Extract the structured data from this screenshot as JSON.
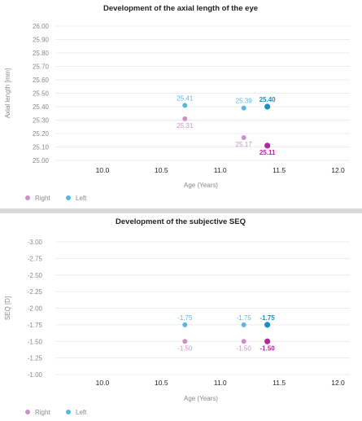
{
  "chart_data": [
    {
      "type": "scatter",
      "title": "Development of the axial length of the eye",
      "xlabel": "Age (Years)",
      "ylabel": "Axial length [mm]",
      "xlim": [
        9.6,
        12.1
      ],
      "ylim": [
        25.0,
        26.0
      ],
      "x_ticks": [
        "10.0",
        "10.5",
        "11.0",
        "11.5",
        "12.0"
      ],
      "y_ticks": [
        "26.00",
        "25.90",
        "25.80",
        "25.70",
        "25.60",
        "25.50",
        "25.40",
        "25.30",
        "25.20",
        "25.10",
        "25.00"
      ],
      "grid": true,
      "legend_position": "bottom-left",
      "series": [
        {
          "name": "Right",
          "color": "#cf8fc8",
          "points": [
            {
              "x": 10.7,
              "y": 25.31,
              "label": "25.31"
            },
            {
              "x": 11.2,
              "y": 25.17,
              "label": "25.17"
            },
            {
              "x": 11.4,
              "y": 25.11,
              "label": "25.11",
              "highlight": true
            }
          ]
        },
        {
          "name": "Left",
          "color": "#56b8df",
          "points": [
            {
              "x": 10.7,
              "y": 25.41,
              "label": "25.41"
            },
            {
              "x": 11.2,
              "y": 25.39,
              "label": "25.39"
            },
            {
              "x": 11.4,
              "y": 25.4,
              "label": "25.40",
              "highlight": true
            }
          ]
        }
      ]
    },
    {
      "type": "scatter",
      "title": "Development of the subjective SEQ",
      "xlabel": "Age (Years)",
      "ylabel": "SEQ [D]",
      "xlim": [
        9.6,
        12.1
      ],
      "ylim": [
        -1.0,
        -3.0
      ],
      "x_ticks": [
        "10.0",
        "10.5",
        "11.0",
        "11.5",
        "12.0"
      ],
      "y_ticks": [
        "-3.00",
        "-2.75",
        "-2.50",
        "-2.25",
        "-2.00",
        "-1.75",
        "-1.50",
        "-1.25",
        "-1.00"
      ],
      "grid": true,
      "legend_position": "bottom-left",
      "series": [
        {
          "name": "Right",
          "color": "#cf8fc8",
          "points": [
            {
              "x": 10.7,
              "y": -1.5,
              "label": "-1.50"
            },
            {
              "x": 11.2,
              "y": -1.5,
              "label": "-1.50"
            },
            {
              "x": 11.4,
              "y": -1.5,
              "label": "-1.50",
              "highlight": true
            }
          ]
        },
        {
          "name": "Left",
          "color": "#56b8df",
          "points": [
            {
              "x": 10.7,
              "y": -1.75,
              "label": "-1.75"
            },
            {
              "x": 11.2,
              "y": -1.75,
              "label": "-1.75"
            },
            {
              "x": 11.4,
              "y": -1.75,
              "label": "-1.75",
              "highlight": true
            }
          ]
        }
      ]
    }
  ]
}
